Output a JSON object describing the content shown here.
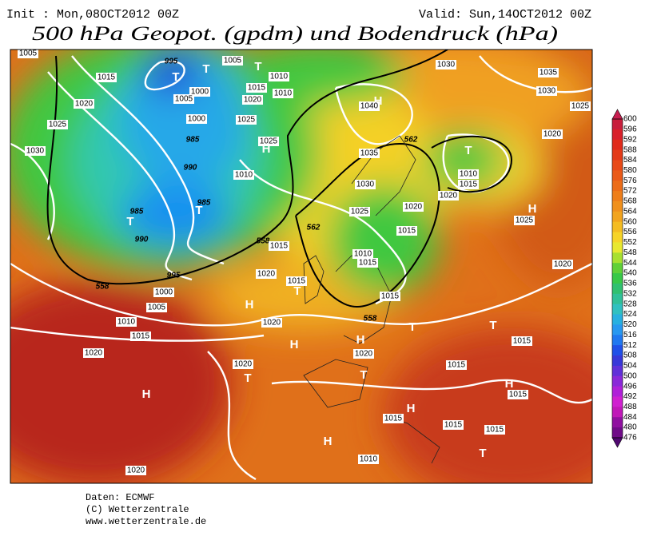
{
  "header": {
    "init": "Init : Mon,08OCT2012 00Z",
    "valid": "Valid: Sun,14OCT2012 00Z",
    "title": "500 hPa Geopot. (gpdm) und Bodendruck (hPa)"
  },
  "map": {
    "labels": [
      "1005",
      "995",
      "1005",
      "T",
      "1030",
      "1035",
      "1015",
      "T",
      "T",
      "1010",
      "1015",
      "1010",
      "1000",
      "1005",
      "1030",
      "1020",
      "1020",
      "H",
      "1040",
      "1025",
      "1000",
      "1025",
      "1025",
      "985",
      "1025",
      "H",
      "562",
      "T",
      "1020",
      "1030",
      "1035",
      "990",
      "1010",
      "1010",
      "1015",
      "1030",
      "985",
      "T",
      "1020",
      "985",
      "T",
      "1025",
      "1020",
      "H",
      "1025",
      "990",
      "562",
      "558",
      "1015",
      "1015",
      "1010",
      "1015",
      "1020",
      "995",
      "1020",
      "1015",
      "T",
      "558",
      "1000",
      "H",
      "1005",
      "1015",
      "1010",
      "558",
      "T",
      "T",
      "1020",
      "1015",
      "H",
      "H",
      "1020",
      "1015",
      "1020",
      "1020",
      "T",
      "T",
      "1015",
      "H",
      "H",
      "1015",
      "H",
      "1015",
      "H",
      "1015",
      "1015",
      "T",
      "1010",
      "1020"
    ]
  },
  "colorbar": {
    "ticks": [
      "600",
      "596",
      "592",
      "588",
      "584",
      "580",
      "576",
      "572",
      "568",
      "564",
      "560",
      "556",
      "552",
      "548",
      "544",
      "540",
      "536",
      "532",
      "528",
      "524",
      "520",
      "516",
      "512",
      "508",
      "504",
      "500",
      "496",
      "492",
      "488",
      "484",
      "480",
      "476"
    ]
  },
  "footer": {
    "lines": [
      "Daten: ECMWF",
      "(C) Wetterzentrale",
      "www.wetterzentrale.de"
    ]
  }
}
